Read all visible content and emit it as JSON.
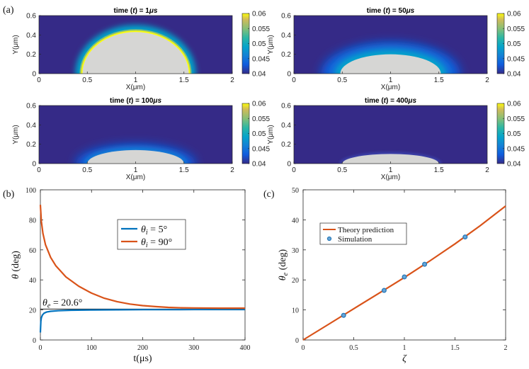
{
  "panel_labels": {
    "a": "(a)",
    "b": "(b)",
    "c": "(c)"
  },
  "colors": {
    "field_low": "#352a87",
    "droplet": "#d6d6d4",
    "orange": "#d95319",
    "blue": "#0072bd",
    "sim_marker": "#2b7bba"
  },
  "chart_data": [
    {
      "type": "heatmap",
      "panel": "a1",
      "title_prefix": "time (",
      "title_var": "t",
      "title_mid": ") = 1",
      "title_unit": "μs",
      "xlabel": "X(μm)",
      "ylabel": "Y(μm)",
      "xlim": [
        0,
        2
      ],
      "ylim": [
        0,
        0.6
      ],
      "xticks": [
        "0",
        "0.5",
        "1",
        "1.5",
        "2"
      ],
      "yticks": [
        "0",
        "0.2",
        "0.4",
        "0.6"
      ],
      "colorbar_ticks": [
        "0.06",
        "0.055",
        "0.05",
        "0.045",
        "0.04"
      ],
      "clim": [
        0.04,
        0.06
      ],
      "droplet": {
        "center_x": 1.0,
        "base_y": 0.0,
        "radius": 0.55,
        "height": 0.43
      },
      "halo": {
        "width": 0.05,
        "peak": 0.06
      }
    },
    {
      "type": "heatmap",
      "panel": "a2",
      "title_prefix": "time (",
      "title_var": "t",
      "title_mid": ") = 50",
      "title_unit": "μs",
      "xlabel": "X(μm)",
      "ylabel": "Y(μm)",
      "xlim": [
        0,
        2
      ],
      "ylim": [
        0,
        0.6
      ],
      "xticks": [
        "0",
        "0.5",
        "1",
        "1.5",
        "2"
      ],
      "yticks": [
        "0",
        "0.2",
        "0.4",
        "0.6"
      ],
      "colorbar_ticks": [
        "0.06",
        "0.055",
        "0.05",
        "0.045",
        "0.04"
      ],
      "clim": [
        0.04,
        0.06
      ],
      "droplet": {
        "center_x": 1.0,
        "base_y": 0.0,
        "radius": 0.52,
        "height": 0.2
      },
      "halo": {
        "width": 0.2,
        "peak": 0.05
      }
    },
    {
      "type": "heatmap",
      "panel": "a3",
      "title_prefix": "time (",
      "title_var": "t",
      "title_mid": ") = 100",
      "title_unit": "μs",
      "xlabel": "X(μm)",
      "ylabel": "Y(μm)",
      "xlim": [
        0,
        2
      ],
      "ylim": [
        0,
        0.6
      ],
      "xticks": [
        "0",
        "0.5",
        "1",
        "1.5",
        "2"
      ],
      "yticks": [
        "0",
        "0.2",
        "0.4",
        "0.6"
      ],
      "colorbar_ticks": [
        "0.06",
        "0.055",
        "0.05",
        "0.045",
        "0.04"
      ],
      "clim": [
        0.04,
        0.06
      ],
      "droplet": {
        "center_x": 1.0,
        "base_y": 0.0,
        "radius": 0.5,
        "height": 0.14
      },
      "halo": {
        "width": 0.12,
        "peak": 0.045
      }
    },
    {
      "type": "heatmap",
      "panel": "a4",
      "title_prefix": "time (",
      "title_var": "t",
      "title_mid": ") = 400",
      "title_unit": "μs",
      "xlabel": "X(μm)",
      "ylabel": "Y(μm)",
      "xlim": [
        0,
        2
      ],
      "ylim": [
        0,
        0.6
      ],
      "xticks": [
        "0",
        "0.5",
        "1",
        "1.5",
        "2"
      ],
      "yticks": [
        "0",
        "0.2",
        "0.4",
        "0.6"
      ],
      "colorbar_ticks": [
        "0.06",
        "0.055",
        "0.05",
        "0.045",
        "0.04"
      ],
      "clim": [
        0.04,
        0.06
      ],
      "droplet": {
        "center_x": 1.0,
        "base_y": 0.0,
        "radius": 0.5,
        "height": 0.1
      },
      "halo": {
        "width": 0.04,
        "peak": 0.041
      }
    },
    {
      "type": "line",
      "panel": "b",
      "xlabel": "t(μs)",
      "ylabel_var": "θ",
      "ylabel_unit": " (deg)",
      "xlim": [
        0,
        400
      ],
      "ylim": [
        0,
        100
      ],
      "xticks": [
        "0",
        "100",
        "200",
        "300",
        "400"
      ],
      "yticks": [
        "0",
        "20",
        "40",
        "60",
        "80",
        "100"
      ],
      "equilibrium": {
        "label_var": "θ",
        "label_sub": "e",
        "label_val": " = 20.6°",
        "value": 20.6
      },
      "series": [
        {
          "name_var": "θ",
          "name_sub": "i",
          "name_val": " = 5°",
          "color": "#0072bd",
          "x": [
            0,
            1,
            2,
            4,
            7,
            12,
            20,
            35,
            60,
            100,
            150,
            200,
            250,
            300,
            350,
            400
          ],
          "y": [
            5,
            12.5,
            14.8,
            16.6,
            17.8,
            18.6,
            19.1,
            19.5,
            19.8,
            20.0,
            20.1,
            20.2,
            20.2,
            20.3,
            20.3,
            20.3
          ]
        },
        {
          "name_var": "θ",
          "name_sub": "i",
          "name_val": " = 90°",
          "color": "#d95319",
          "x": [
            0,
            2,
            5,
            10,
            20,
            30,
            50,
            75,
            100,
            125,
            150,
            175,
            200,
            225,
            250,
            275,
            300,
            350,
            400
          ],
          "y": [
            90,
            79,
            71,
            63.5,
            55,
            49.5,
            42,
            35.8,
            31.2,
            27.8,
            25.5,
            23.9,
            22.9,
            22.2,
            21.7,
            21.4,
            21.3,
            21.2,
            21.2
          ]
        }
      ]
    },
    {
      "type": "line",
      "panel": "c",
      "xlabel": "ζ",
      "ylabel_var": "θ",
      "ylabel_sub": "e",
      "ylabel_unit": " (deg)",
      "xlim": [
        0,
        2
      ],
      "ylim": [
        0,
        50
      ],
      "xticks": [
        "0",
        "0.5",
        "1",
        "1.5",
        "2"
      ],
      "yticks": [
        "0",
        "10",
        "20",
        "30",
        "40",
        "50"
      ],
      "series": [
        {
          "name": "Theory prediction",
          "style": "line",
          "color": "#d95319",
          "x": [
            0,
            0.25,
            0.5,
            0.75,
            1.0,
            1.25,
            1.5,
            1.75,
            2.0
          ],
          "y": [
            0,
            5.2,
            10.4,
            15.6,
            20.8,
            26.3,
            32.0,
            38.1,
            44.6
          ]
        },
        {
          "name": "Simulation",
          "style": "marker",
          "color": "#2b7bba",
          "x": [
            0.4,
            0.8,
            1.0,
            1.2,
            1.6
          ],
          "y": [
            8.2,
            16.5,
            21.0,
            25.2,
            34.3
          ]
        }
      ]
    }
  ]
}
